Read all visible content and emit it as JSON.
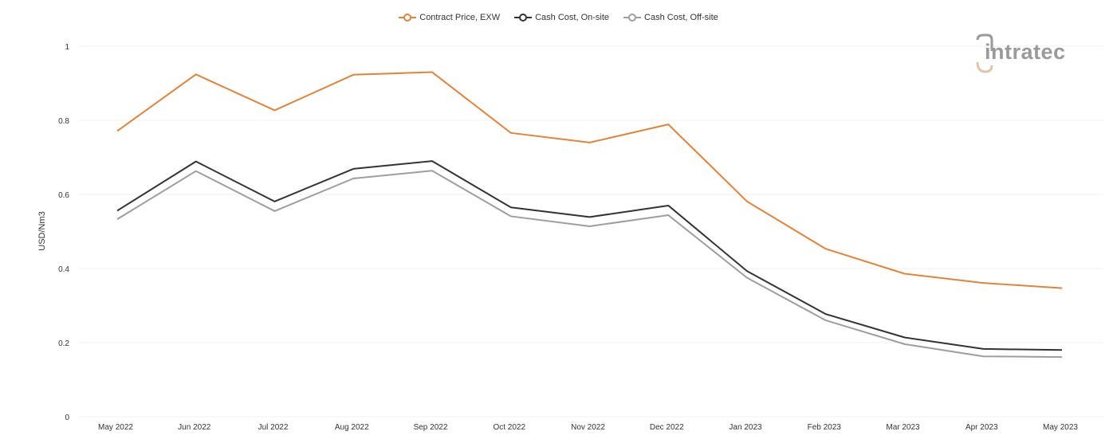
{
  "logo": {
    "text": "intratec"
  },
  "chart_data": {
    "type": "line",
    "categories": [
      "May 2022",
      "Jun 2022",
      "Jul 2022",
      "Aug 2022",
      "Sep 2022",
      "Oct 2022",
      "Nov 2022",
      "Dec 2022",
      "Jan 2023",
      "Feb 2023",
      "Mar 2023",
      "Apr 2023",
      "May 2023"
    ],
    "series": [
      {
        "name": "Contract Price, EXW",
        "color": "#e0843c",
        "values": [
          0.771,
          0.924,
          0.827,
          0.923,
          0.93,
          0.766,
          0.74,
          0.789,
          0.581,
          0.453,
          0.386,
          0.361,
          0.347
        ]
      },
      {
        "name": "Cash Cost, On-site",
        "color": "#333333",
        "values": [
          0.556,
          0.689,
          0.581,
          0.669,
          0.69,
          0.565,
          0.539,
          0.57,
          0.393,
          0.277,
          0.214,
          0.183,
          0.18
        ]
      },
      {
        "name": "Cash Cost, Off-site",
        "color": "#9e9e9e",
        "values": [
          0.533,
          0.663,
          0.555,
          0.643,
          0.664,
          0.541,
          0.514,
          0.544,
          0.375,
          0.26,
          0.196,
          0.163,
          0.161
        ]
      }
    ],
    "ylabel": "USD/Nm3",
    "xlabel": "",
    "ylim": [
      0,
      1
    ],
    "yticks": [
      0,
      0.2,
      0.4,
      0.6,
      0.8,
      1
    ],
    "ytick_labels": [
      "0",
      "0.2",
      "0.4",
      "0.6",
      "0.8",
      "1"
    ],
    "grid": true,
    "legend_position": "top-center"
  }
}
